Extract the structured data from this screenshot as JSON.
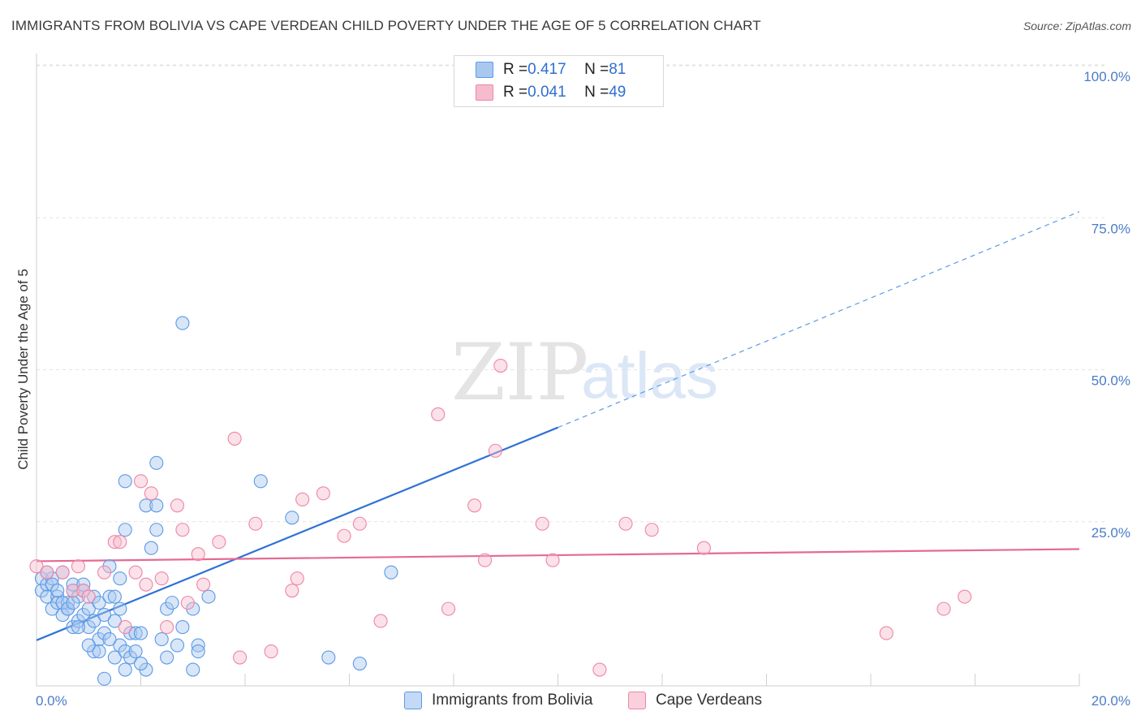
{
  "title": "IMMIGRANTS FROM BOLIVIA VS CAPE VERDEAN CHILD POVERTY UNDER THE AGE OF 5 CORRELATION CHART",
  "source": "Source: ZipAtlas.com",
  "watermark": {
    "zip": "ZIP",
    "atlas": "atlas"
  },
  "legend": {
    "rows": [
      {
        "r_label": "R = ",
        "r_value": "0.417",
        "n_label": "N = ",
        "n_value": "81",
        "color": "#a9c8f0"
      },
      {
        "r_label": "R = ",
        "r_value": "0.041",
        "n_label": "N = ",
        "n_value": "49",
        "color": "#f6bccd"
      }
    ]
  },
  "bottom_legend": [
    "Immigrants from Bolivia",
    "Cape Verdeans"
  ],
  "chart_data": {
    "type": "scatter",
    "title": "IMMIGRANTS FROM BOLIVIA VS CAPE VERDEAN CHILD POVERTY UNDER THE AGE OF 5 CORRELATION CHART",
    "xlabel": "",
    "ylabel": "Child Poverty Under the Age of 5",
    "xlim": [
      0,
      20
    ],
    "ylim": [
      0,
      100
    ],
    "x_tick_labels": [
      "0.0%",
      "20.0%"
    ],
    "y_ticks": [
      25,
      50,
      75,
      100
    ],
    "y_tick_labels": [
      "25.0%",
      "50.0%",
      "75.0%",
      "100.0%"
    ],
    "grid": true,
    "series": [
      {
        "name": "Immigrants from Bolivia",
        "color": "#5b9ae6",
        "fill": "#a9c8f0",
        "R": 0.417,
        "N": 81,
        "trend": {
          "x0": 0,
          "y0": 7.5,
          "x1": 10,
          "y1": 42.5,
          "dash_to": 20,
          "dash_y": 78
        },
        "points": [
          [
            0.1,
            17
          ],
          [
            0.1,
            15
          ],
          [
            0.2,
            16
          ],
          [
            0.2,
            14
          ],
          [
            0.3,
            17
          ],
          [
            0.3,
            12
          ],
          [
            0.4,
            14
          ],
          [
            0.4,
            13
          ],
          [
            0.5,
            18
          ],
          [
            0.5,
            11
          ],
          [
            0.6,
            13
          ],
          [
            0.6,
            12
          ],
          [
            0.7,
            15
          ],
          [
            0.7,
            9
          ],
          [
            0.7,
            16
          ],
          [
            0.8,
            10
          ],
          [
            0.8,
            14
          ],
          [
            0.9,
            11
          ],
          [
            0.9,
            16
          ],
          [
            1.0,
            12
          ],
          [
            1.0,
            9
          ],
          [
            1.1,
            14
          ],
          [
            1.1,
            5
          ],
          [
            1.2,
            7
          ],
          [
            1.2,
            5
          ],
          [
            1.2,
            13
          ],
          [
            1.3,
            8
          ],
          [
            1.3,
            11
          ],
          [
            1.3,
            0.5
          ],
          [
            1.4,
            19
          ],
          [
            1.4,
            14
          ],
          [
            1.5,
            4
          ],
          [
            1.5,
            10
          ],
          [
            1.5,
            14
          ],
          [
            1.6,
            6
          ],
          [
            1.6,
            17
          ],
          [
            1.7,
            5
          ],
          [
            1.7,
            33
          ],
          [
            1.7,
            25
          ],
          [
            1.7,
            2
          ],
          [
            1.8,
            8
          ],
          [
            1.8,
            4
          ],
          [
            1.9,
            5
          ],
          [
            1.9,
            8
          ],
          [
            2.0,
            8
          ],
          [
            2.1,
            2
          ],
          [
            2.1,
            29
          ],
          [
            2.2,
            22
          ],
          [
            2.3,
            36
          ],
          [
            2.3,
            25
          ],
          [
            2.3,
            29
          ],
          [
            2.5,
            4
          ],
          [
            2.5,
            12
          ],
          [
            2.6,
            13
          ],
          [
            2.7,
            6
          ],
          [
            2.8,
            9
          ],
          [
            2.8,
            59
          ],
          [
            3.0,
            12
          ],
          [
            3.0,
            2
          ],
          [
            3.1,
            6
          ],
          [
            3.1,
            5
          ],
          [
            3.3,
            14
          ],
          [
            4.3,
            33
          ],
          [
            4.9,
            27
          ],
          [
            5.6,
            4
          ],
          [
            6.2,
            3
          ],
          [
            6.8,
            18
          ],
          [
            0.2,
            18
          ],
          [
            0.3,
            16
          ],
          [
            0.5,
            13
          ],
          [
            0.6,
            12
          ],
          [
            0.8,
            9
          ],
          [
            0.9,
            15
          ],
          [
            1.0,
            6
          ],
          [
            1.1,
            10
          ],
          [
            1.4,
            7
          ],
          [
            1.6,
            12
          ],
          [
            2.0,
            3
          ],
          [
            0.4,
            15
          ],
          [
            0.7,
            13
          ],
          [
            2.4,
            7
          ]
        ]
      },
      {
        "name": "Cape Verdeans",
        "color": "#ee85a8",
        "fill": "#f6bccd",
        "R": 0.041,
        "N": 49,
        "trend": {
          "x0": 0,
          "y0": 20.5,
          "x1": 20,
          "y1": 22.5
        },
        "points": [
          [
            0.0,
            19
          ],
          [
            0.2,
            18
          ],
          [
            0.5,
            18
          ],
          [
            0.7,
            15
          ],
          [
            0.8,
            19
          ],
          [
            0.9,
            15
          ],
          [
            1.0,
            14
          ],
          [
            1.3,
            18
          ],
          [
            1.5,
            23
          ],
          [
            1.6,
            23
          ],
          [
            1.7,
            9
          ],
          [
            1.9,
            18
          ],
          [
            2.0,
            33
          ],
          [
            2.2,
            31
          ],
          [
            2.4,
            17
          ],
          [
            2.5,
            9
          ],
          [
            2.7,
            29
          ],
          [
            2.8,
            25
          ],
          [
            2.9,
            13
          ],
          [
            3.1,
            21
          ],
          [
            3.2,
            16
          ],
          [
            3.5,
            23
          ],
          [
            3.8,
            40
          ],
          [
            3.9,
            4
          ],
          [
            4.2,
            26
          ],
          [
            4.5,
            5
          ],
          [
            4.9,
            15
          ],
          [
            5.0,
            17
          ],
          [
            5.1,
            30
          ],
          [
            5.5,
            31
          ],
          [
            5.9,
            24
          ],
          [
            6.2,
            26
          ],
          [
            6.6,
            10
          ],
          [
            7.7,
            44
          ],
          [
            7.9,
            12
          ],
          [
            8.4,
            29
          ],
          [
            8.6,
            20
          ],
          [
            8.8,
            38
          ],
          [
            8.9,
            52
          ],
          [
            9.7,
            26
          ],
          [
            9.9,
            20
          ],
          [
            10.8,
            2
          ],
          [
            11.3,
            26
          ],
          [
            11.8,
            25
          ],
          [
            12.8,
            22
          ],
          [
            16.3,
            8
          ],
          [
            17.4,
            12
          ],
          [
            17.8,
            14
          ],
          [
            2.1,
            16
          ]
        ]
      }
    ]
  }
}
